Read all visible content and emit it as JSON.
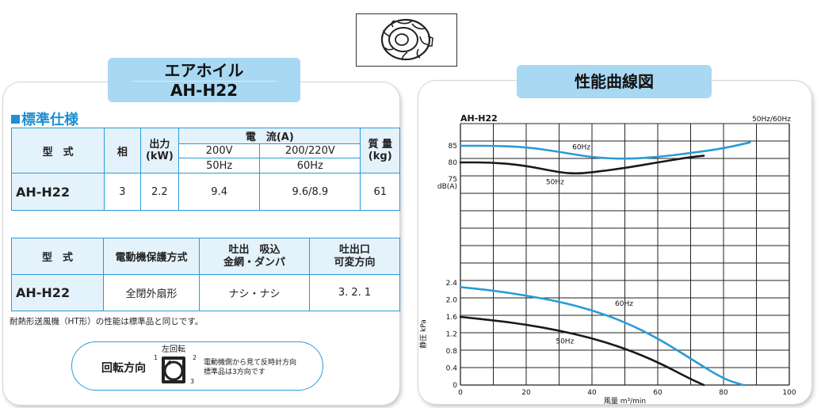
{
  "product": {
    "name": "エアホイル",
    "model_tab": "AH-H22"
  },
  "spec": {
    "heading": "標準仕様",
    "table1": {
      "h_model": "型　式",
      "h_phase": "相",
      "h_output_1": "出力",
      "h_output_2": "(kW)",
      "h_current": "電　流(A)",
      "h_200v": "200V",
      "h_200_220v": "200/220V",
      "h_50hz": "50Hz",
      "h_60hz": "60Hz",
      "h_mass_1": "質 量",
      "h_mass_2": "(kg)",
      "row": {
        "model": "AH-H22",
        "phase": "3",
        "output": "2.2",
        "current_50": "9.4",
        "current_60": "9.6/8.9",
        "mass": "61"
      }
    },
    "table2": {
      "h_model": "型　式",
      "h_protection": "電動機保護方式",
      "h_damper_1": "吐出　吸込",
      "h_damper_2": "金網・ダンパ",
      "h_outlet_1": "吐出口",
      "h_outlet_2": "可変方向",
      "row": {
        "model": "AH-H22",
        "protection": "全閉外扇形",
        "damper": "ナシ・ナシ",
        "outlet": "3. 2. 1"
      }
    },
    "note": "耐熱形送風機（HT形）の性能は標準品と同じです。"
  },
  "rotation": {
    "label": "回転方向",
    "direction": "左回転",
    "n1": "1",
    "n2": "2",
    "n3": "3",
    "desc1": "電動機側から見て反時計方向",
    "desc2": "標準品は3方向です"
  },
  "chart_title_tab": "性能曲線図",
  "chart_data": {
    "type": "line",
    "title": "AH-H22",
    "subtitle": "50Hz/60Hz",
    "xlabel": "風量 m³/min",
    "xlim": [
      0,
      100
    ],
    "x_ticks": [
      "0",
      "20",
      "40",
      "60",
      "80",
      "100"
    ],
    "grid": true,
    "noise": {
      "ylabel": "dB(A)",
      "ylim": [
        75,
        85
      ],
      "y_ticks": [
        "85",
        "80",
        "75"
      ],
      "series": [
        {
          "name": "60Hz",
          "color": "#2a9bd6",
          "x": [
            0,
            10,
            20,
            30,
            40,
            50,
            60,
            70,
            80,
            88
          ],
          "y": [
            85,
            85,
            84.6,
            83.2,
            81.5,
            81,
            81.6,
            82.8,
            84.2,
            86
          ]
        },
        {
          "name": "50Hz",
          "color": "#1a1a1a",
          "x": [
            0,
            10,
            20,
            30,
            35,
            40,
            50,
            60,
            70,
            74
          ],
          "y": [
            80,
            80,
            79,
            77,
            76.6,
            77,
            78.3,
            80,
            81.6,
            82
          ]
        }
      ],
      "annotations": [
        "60Hz",
        "50Hz"
      ]
    },
    "pressure": {
      "ylabel": "静圧 kPa",
      "ylim": [
        0,
        2.4
      ],
      "y_ticks": [
        "2.4",
        "2.0",
        "1.6",
        "1.2",
        "0.8",
        "0.4",
        "0"
      ],
      "series": [
        {
          "name": "60Hz",
          "color": "#2a9bd6",
          "x": [
            0,
            10,
            20,
            30,
            40,
            50,
            60,
            70,
            80,
            86
          ],
          "y": [
            2.3,
            2.22,
            2.1,
            1.96,
            1.76,
            1.48,
            1.1,
            0.62,
            0.14,
            0
          ]
        },
        {
          "name": "50Hz",
          "color": "#1a1a1a",
          "x": [
            0,
            10,
            20,
            30,
            40,
            50,
            60,
            70,
            74
          ],
          "y": [
            1.6,
            1.52,
            1.42,
            1.28,
            1.1,
            0.86,
            0.54,
            0.14,
            0
          ]
        }
      ],
      "annotations": [
        "60Hz",
        "50Hz"
      ]
    }
  }
}
